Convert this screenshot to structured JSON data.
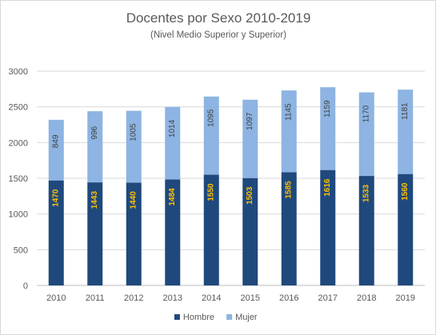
{
  "chart_data": {
    "type": "bar",
    "stacked": true,
    "title": "Docentes por Sexo 2010-2019",
    "subtitle": "(Nivel Medio Superior y Superior)",
    "categories": [
      "2010",
      "2011",
      "2012",
      "2013",
      "2014",
      "2015",
      "2016",
      "2017",
      "2018",
      "2019"
    ],
    "series": [
      {
        "name": "Hombre",
        "color": "#1f497d",
        "label_color": "#ffc000",
        "values": [
          1470,
          1443,
          1440,
          1484,
          1550,
          1503,
          1585,
          1616,
          1533,
          1560
        ]
      },
      {
        "name": "Mujer",
        "color": "#8db4e2",
        "label_color": "#404040",
        "values": [
          849,
          996,
          1005,
          1014,
          1095,
          1097,
          1145,
          1159,
          1170,
          1181
        ]
      }
    ],
    "ylim": [
      0,
      3000
    ],
    "yticks": [
      0,
      500,
      1000,
      1500,
      2000,
      2500,
      3000
    ],
    "grid": true,
    "legend": "bottom",
    "xlabel": "",
    "ylabel": ""
  }
}
